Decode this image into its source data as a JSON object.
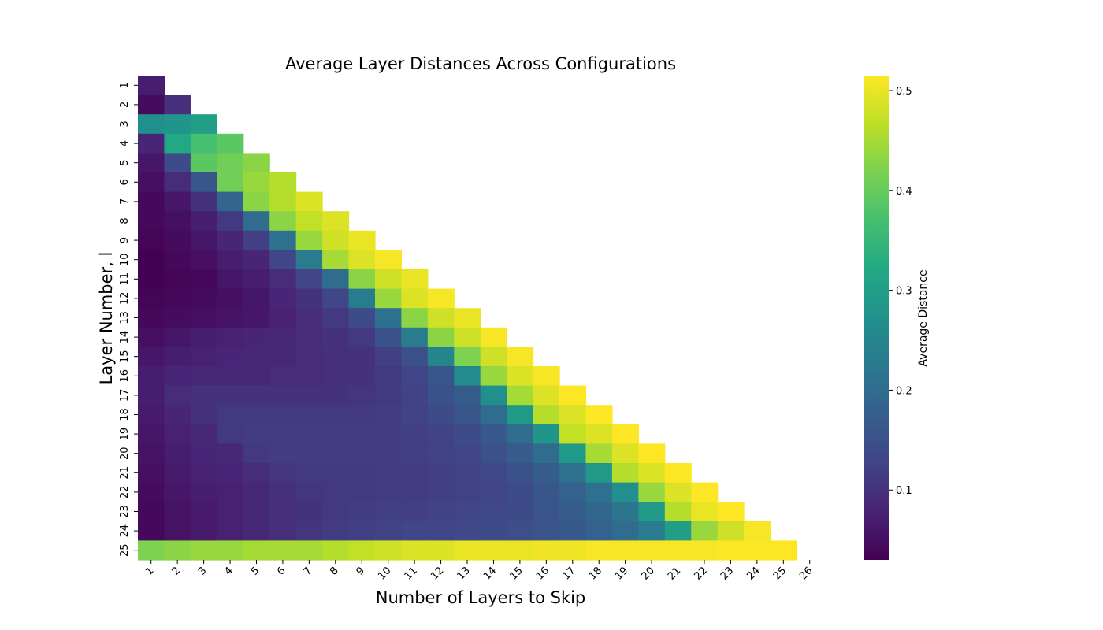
{
  "chart_data": {
    "type": "heatmap",
    "title": "Average Layer Distances Across Configurations",
    "xlabel": "Number of Layers to Skip",
    "ylabel": "Layer Number, l",
    "x_ticks": [
      "1",
      "2",
      "3",
      "4",
      "5",
      "6",
      "7",
      "8",
      "9",
      "10",
      "11",
      "12",
      "13",
      "14",
      "15",
      "16",
      "17",
      "18",
      "19",
      "20",
      "21",
      "22",
      "23",
      "24",
      "25",
      "26"
    ],
    "y_ticks": [
      "1",
      "2",
      "3",
      "4",
      "5",
      "6",
      "7",
      "8",
      "9",
      "10",
      "11",
      "12",
      "13",
      "14",
      "15",
      "16",
      "17",
      "18",
      "19",
      "20",
      "21",
      "22",
      "23",
      "24",
      "25"
    ],
    "colorbar": {
      "label": "Average Distance",
      "colormap": "viridis",
      "vmin": 0.03,
      "vmax": 0.515,
      "ticks": [
        "0.1",
        "0.2",
        "0.3",
        "0.4",
        "0.5"
      ],
      "tick_values": [
        0.1,
        0.2,
        0.3,
        0.4,
        0.5
      ]
    },
    "values": [
      [
        0.07
      ],
      [
        0.045,
        0.095
      ],
      [
        0.27,
        0.28,
        0.3
      ],
      [
        0.08,
        0.32,
        0.37,
        0.39
      ],
      [
        0.06,
        0.14,
        0.39,
        0.41,
        0.43
      ],
      [
        0.05,
        0.09,
        0.16,
        0.41,
        0.44,
        0.46
      ],
      [
        0.04,
        0.06,
        0.1,
        0.19,
        0.43,
        0.46,
        0.49
      ],
      [
        0.04,
        0.05,
        0.07,
        0.11,
        0.2,
        0.43,
        0.47,
        0.49
      ],
      [
        0.035,
        0.045,
        0.06,
        0.08,
        0.12,
        0.21,
        0.44,
        0.48,
        0.5
      ],
      [
        0.03,
        0.04,
        0.05,
        0.07,
        0.08,
        0.13,
        0.23,
        0.45,
        0.49,
        0.51
      ],
      [
        0.03,
        0.035,
        0.04,
        0.06,
        0.07,
        0.09,
        0.13,
        0.2,
        0.43,
        0.48,
        0.5
      ],
      [
        0.035,
        0.04,
        0.045,
        0.05,
        0.06,
        0.08,
        0.1,
        0.13,
        0.23,
        0.44,
        0.49,
        0.51
      ],
      [
        0.04,
        0.045,
        0.05,
        0.055,
        0.06,
        0.075,
        0.09,
        0.11,
        0.14,
        0.21,
        0.43,
        0.48,
        0.5
      ],
      [
        0.05,
        0.06,
        0.07,
        0.075,
        0.08,
        0.085,
        0.09,
        0.1,
        0.11,
        0.15,
        0.23,
        0.43,
        0.48,
        0.51
      ],
      [
        0.06,
        0.07,
        0.075,
        0.08,
        0.085,
        0.085,
        0.09,
        0.095,
        0.1,
        0.12,
        0.15,
        0.25,
        0.42,
        0.48,
        0.51
      ],
      [
        0.07,
        0.08,
        0.085,
        0.085,
        0.085,
        0.09,
        0.09,
        0.095,
        0.1,
        0.11,
        0.13,
        0.16,
        0.26,
        0.44,
        0.49,
        0.51
      ],
      [
        0.07,
        0.09,
        0.1,
        0.1,
        0.1,
        0.1,
        0.1,
        0.1,
        0.105,
        0.11,
        0.125,
        0.15,
        0.17,
        0.27,
        0.45,
        0.49,
        0.515
      ],
      [
        0.065,
        0.08,
        0.1,
        0.11,
        0.11,
        0.11,
        0.11,
        0.11,
        0.11,
        0.115,
        0.125,
        0.14,
        0.16,
        0.2,
        0.29,
        0.46,
        0.49,
        0.515
      ],
      [
        0.06,
        0.075,
        0.085,
        0.11,
        0.115,
        0.115,
        0.115,
        0.115,
        0.115,
        0.115,
        0.12,
        0.125,
        0.14,
        0.165,
        0.2,
        0.28,
        0.47,
        0.49,
        0.515
      ],
      [
        0.055,
        0.07,
        0.08,
        0.085,
        0.11,
        0.115,
        0.115,
        0.115,
        0.115,
        0.115,
        0.12,
        0.125,
        0.13,
        0.15,
        0.17,
        0.2,
        0.29,
        0.45,
        0.49,
        0.515
      ],
      [
        0.05,
        0.065,
        0.075,
        0.08,
        0.09,
        0.105,
        0.11,
        0.11,
        0.11,
        0.115,
        0.115,
        0.12,
        0.125,
        0.135,
        0.15,
        0.17,
        0.21,
        0.29,
        0.46,
        0.49,
        0.515
      ],
      [
        0.045,
        0.06,
        0.07,
        0.075,
        0.085,
        0.095,
        0.105,
        0.11,
        0.11,
        0.115,
        0.115,
        0.12,
        0.125,
        0.13,
        0.14,
        0.16,
        0.18,
        0.21,
        0.27,
        0.44,
        0.49,
        0.515
      ],
      [
        0.04,
        0.055,
        0.065,
        0.075,
        0.085,
        0.095,
        0.1,
        0.11,
        0.115,
        0.12,
        0.12,
        0.125,
        0.13,
        0.135,
        0.14,
        0.155,
        0.17,
        0.19,
        0.22,
        0.29,
        0.46,
        0.5,
        0.515
      ],
      [
        0.04,
        0.055,
        0.065,
        0.075,
        0.085,
        0.095,
        0.105,
        0.115,
        0.12,
        0.125,
        0.13,
        0.13,
        0.135,
        0.14,
        0.145,
        0.155,
        0.165,
        0.18,
        0.2,
        0.23,
        0.3,
        0.44,
        0.48,
        0.51
      ],
      [
        0.42,
        0.43,
        0.44,
        0.44,
        0.45,
        0.45,
        0.45,
        0.46,
        0.47,
        0.48,
        0.49,
        0.49,
        0.5,
        0.5,
        0.5,
        0.505,
        0.505,
        0.51,
        0.51,
        0.51,
        0.51,
        0.51,
        0.515,
        0.515,
        0.515
      ]
    ]
  }
}
